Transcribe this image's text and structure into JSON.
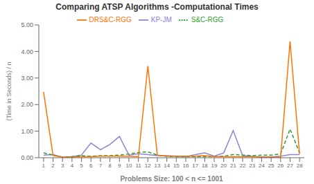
{
  "chart_data": {
    "type": "line",
    "title": "Comparing ATSP Algorithms -Computational Times",
    "xlabel": "Problems Size: 100 < n <= 1001",
    "ylabel": "(Time in Seconds) / n",
    "x": [
      1,
      2,
      3,
      4,
      5,
      6,
      7,
      8,
      9,
      10,
      11,
      12,
      13,
      14,
      15,
      16,
      17,
      18,
      19,
      20,
      21,
      22,
      23,
      24,
      25,
      26,
      27,
      28
    ],
    "series": [
      {
        "name": "KP-JM",
        "color": "#8884d8",
        "line_style": "solid",
        "marker": "none",
        "values": [
          0.1,
          0.12,
          0.02,
          0.04,
          0.1,
          0.55,
          0.3,
          0.5,
          0.8,
          0.1,
          0.15,
          0.12,
          0.08,
          0.08,
          0.06,
          0.04,
          0.12,
          0.18,
          0.06,
          0.18,
          1.02,
          0.08,
          0.05,
          0.03,
          0.03,
          0.06,
          0.12,
          0.12
        ]
      },
      {
        "name": "S&C-RGG",
        "color": "#2ca02c",
        "line_style": "dashed",
        "marker": "none",
        "values": [
          0.18,
          0.1,
          0.02,
          0.04,
          0.08,
          0.05,
          0.08,
          0.08,
          0.1,
          0.14,
          0.2,
          0.22,
          0.1,
          0.05,
          0.04,
          0.04,
          0.04,
          0.04,
          0.04,
          0.06,
          0.12,
          0.1,
          0.08,
          0.1,
          0.1,
          0.14,
          1.08,
          0.18
        ]
      },
      {
        "name": "DRS&C-RGG",
        "color": "#ff7300",
        "line_style": "solid",
        "marker": "none",
        "values": [
          2.48,
          0.08,
          0.02,
          0.02,
          0.04,
          0.04,
          0.06,
          0.06,
          0.06,
          0.06,
          0.04,
          3.45,
          0.1,
          0.06,
          0.06,
          0.06,
          0.06,
          0.08,
          0.04,
          0.04,
          0.04,
          0.04,
          0.04,
          0.02,
          0.02,
          0.02,
          4.38,
          0.14
        ]
      }
    ],
    "xlim": [
      0.5,
      28.5
    ],
    "xticks": [
      1,
      2,
      3,
      4,
      5,
      6,
      7,
      8,
      9,
      10,
      11,
      12,
      13,
      14,
      15,
      16,
      17,
      18,
      19,
      20,
      21,
      22,
      23,
      24,
      25,
      26,
      27,
      28
    ],
    "ylim": [
      0,
      5.0
    ],
    "yticks": [
      {
        "value": 0,
        "label": "0.00"
      },
      {
        "value": 1,
        "label": "1.00"
      },
      {
        "value": 2,
        "label": "2.00"
      },
      {
        "value": 3,
        "label": "3.00"
      },
      {
        "value": 4,
        "label": "4.00"
      },
      {
        "value": 5,
        "label": "5.00"
      }
    ],
    "grid": false,
    "legend": "top"
  }
}
